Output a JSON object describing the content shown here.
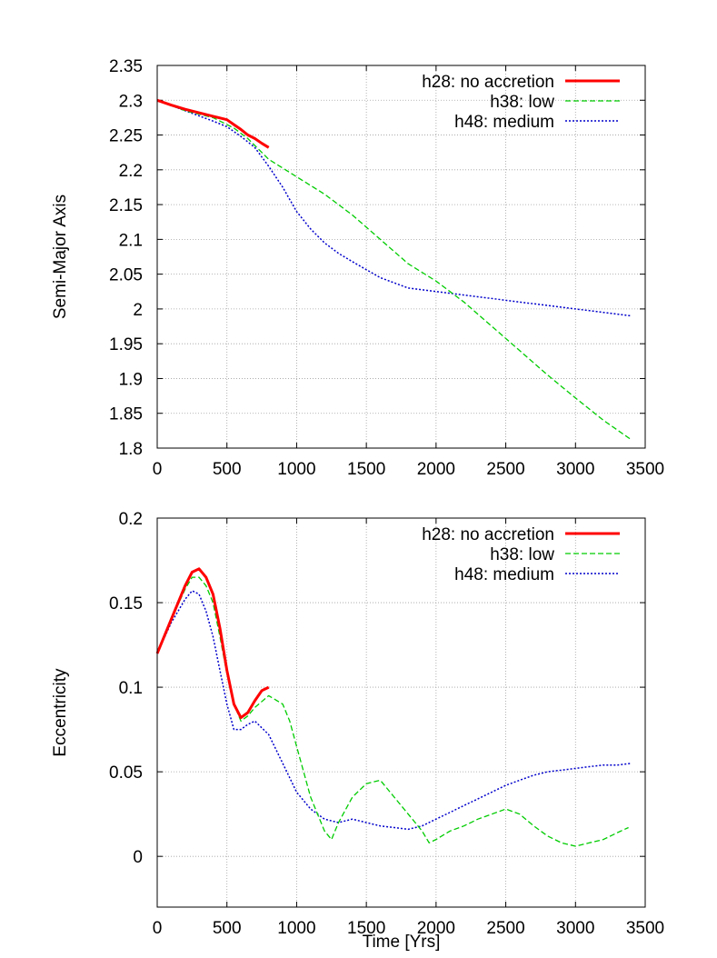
{
  "colors": {
    "no_accretion": "#ff0000",
    "low": "#00cc00",
    "medium": "#0000cc",
    "grid": "#a0a0a0"
  },
  "chart_data": [
    {
      "type": "line",
      "title": "",
      "xlabel": "",
      "ylabel": "Semi-Major Axis",
      "xlim": [
        0,
        3500
      ],
      "ylim": [
        1.8,
        2.35
      ],
      "x_ticks": [
        0,
        500,
        1000,
        1500,
        2000,
        2500,
        3000,
        3500
      ],
      "x_tick_labels": [
        "0",
        "500",
        "1000",
        "1500",
        "2000",
        "2500",
        "3000",
        "3500"
      ],
      "y_ticks": [
        1.8,
        1.85,
        1.9,
        1.95,
        2.0,
        2.05,
        2.1,
        2.15,
        2.2,
        2.25,
        2.3,
        2.35
      ],
      "y_tick_labels": [
        "1.8",
        "1.85",
        "1.9",
        "1.95",
        "2",
        "2.05",
        "2.1",
        "2.15",
        "2.2",
        "2.25",
        "2.3",
        "2.35"
      ],
      "grid": true,
      "legend_position": "top-right",
      "series": [
        {
          "name": "h28: no accretion",
          "style": "solid",
          "color": "#ff0000",
          "x": [
            0,
            100,
            200,
            300,
            400,
            500,
            550,
            600,
            650,
            700,
            750,
            800
          ],
          "y": [
            2.3,
            2.293,
            2.287,
            2.282,
            2.277,
            2.272,
            2.265,
            2.258,
            2.25,
            2.245,
            2.238,
            2.232
          ]
        },
        {
          "name": "h38: low",
          "style": "dashed",
          "color": "#00cc00",
          "x": [
            0,
            200,
            400,
            550,
            650,
            800,
            1000,
            1200,
            1400,
            1600,
            1800,
            2000,
            2200,
            2400,
            2600,
            2800,
            3000,
            3200,
            3400
          ],
          "y": [
            2.3,
            2.285,
            2.275,
            2.26,
            2.245,
            2.215,
            2.19,
            2.165,
            2.135,
            2.1,
            2.065,
            2.04,
            2.01,
            1.975,
            1.94,
            1.905,
            1.872,
            1.84,
            1.812
          ]
        },
        {
          "name": "h48: medium",
          "style": "dotted",
          "color": "#0000cc",
          "x": [
            0,
            200,
            400,
            500,
            600,
            700,
            800,
            900,
            1000,
            1100,
            1200,
            1300,
            1400,
            1600,
            1800,
            2000,
            2200,
            2400,
            2600,
            2800,
            3000,
            3200,
            3400
          ],
          "y": [
            2.3,
            2.285,
            2.27,
            2.262,
            2.248,
            2.232,
            2.205,
            2.175,
            2.14,
            2.115,
            2.095,
            2.08,
            2.068,
            2.045,
            2.03,
            2.025,
            2.02,
            2.015,
            2.01,
            2.005,
            2.0,
            1.995,
            1.99
          ]
        }
      ]
    },
    {
      "type": "line",
      "title": "",
      "xlabel": "Time [Yrs]",
      "ylabel": "Eccentricity",
      "xlim": [
        0,
        3500
      ],
      "ylim": [
        -0.03,
        0.2
      ],
      "x_ticks": [
        0,
        500,
        1000,
        1500,
        2000,
        2500,
        3000,
        3500
      ],
      "x_tick_labels": [
        "0",
        "500",
        "1000",
        "1500",
        "2000",
        "2500",
        "3000",
        "3500"
      ],
      "y_ticks": [
        0,
        0.05,
        0.1,
        0.15,
        0.2
      ],
      "y_tick_labels": [
        "0",
        "0.05",
        "0.1",
        "0.15",
        "0.2"
      ],
      "grid": true,
      "legend_position": "top-right",
      "series": [
        {
          "name": "h28: no accretion",
          "style": "solid",
          "color": "#ff0000",
          "x": [
            0,
            100,
            200,
            250,
            300,
            350,
            400,
            450,
            500,
            550,
            600,
            650,
            700,
            750,
            800
          ],
          "y": [
            0.12,
            0.14,
            0.16,
            0.168,
            0.17,
            0.165,
            0.155,
            0.135,
            0.11,
            0.09,
            0.082,
            0.085,
            0.092,
            0.098,
            0.1
          ]
        },
        {
          "name": "h38: low",
          "style": "dashed",
          "color": "#00cc00",
          "x": [
            0,
            100,
            200,
            250,
            300,
            350,
            400,
            450,
            500,
            550,
            600,
            650,
            700,
            800,
            900,
            950,
            1000,
            1100,
            1200,
            1250,
            1300,
            1400,
            1500,
            1600,
            1700,
            1800,
            1900,
            1950,
            2000,
            2100,
            2200,
            2300,
            2400,
            2500,
            2600,
            2700,
            2800,
            2900,
            3000,
            3100,
            3200,
            3300,
            3380
          ],
          "y": [
            0.12,
            0.14,
            0.158,
            0.165,
            0.165,
            0.16,
            0.15,
            0.13,
            0.108,
            0.09,
            0.08,
            0.083,
            0.088,
            0.095,
            0.09,
            0.08,
            0.065,
            0.035,
            0.015,
            0.01,
            0.02,
            0.035,
            0.043,
            0.045,
            0.035,
            0.025,
            0.015,
            0.008,
            0.01,
            0.015,
            0.018,
            0.022,
            0.025,
            0.028,
            0.025,
            0.018,
            0.012,
            0.008,
            0.006,
            0.008,
            0.01,
            0.014,
            0.017
          ]
        },
        {
          "name": "h48: medium",
          "style": "dotted",
          "color": "#0000cc",
          "x": [
            0,
            100,
            200,
            250,
            300,
            350,
            400,
            450,
            500,
            550,
            600,
            650,
            700,
            800,
            900,
            1000,
            1100,
            1200,
            1300,
            1400,
            1500,
            1600,
            1700,
            1800,
            1900,
            2000,
            2100,
            2200,
            2300,
            2400,
            2500,
            2600,
            2700,
            2800,
            2900,
            3000,
            3100,
            3200,
            3300,
            3400
          ],
          "y": [
            0.12,
            0.138,
            0.152,
            0.157,
            0.155,
            0.145,
            0.13,
            0.11,
            0.09,
            0.075,
            0.075,
            0.078,
            0.08,
            0.072,
            0.055,
            0.038,
            0.028,
            0.022,
            0.02,
            0.022,
            0.02,
            0.018,
            0.017,
            0.016,
            0.018,
            0.022,
            0.026,
            0.03,
            0.034,
            0.038,
            0.042,
            0.045,
            0.048,
            0.05,
            0.051,
            0.052,
            0.053,
            0.054,
            0.054,
            0.055
          ]
        }
      ]
    }
  ]
}
